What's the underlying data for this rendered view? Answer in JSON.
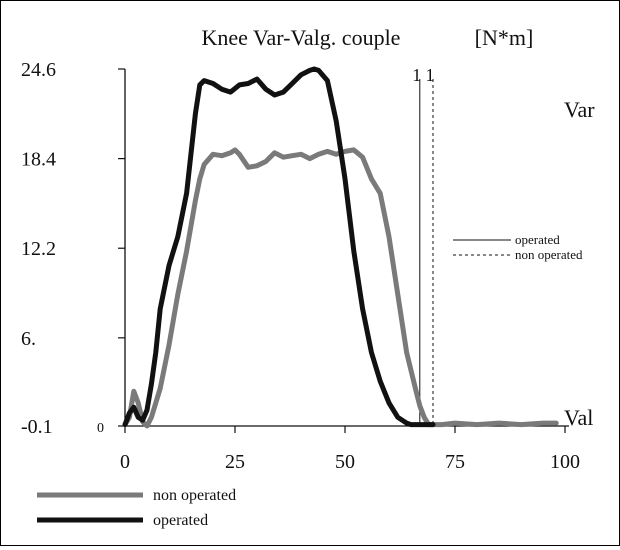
{
  "chart_data": {
    "type": "line",
    "title": "Knee Var-Valg. couple",
    "unit": "[N*m]",
    "xlabel": "",
    "ylabel": "",
    "xlim": [
      0,
      100
    ],
    "ylim": [
      -0.1,
      24.6
    ],
    "x_ticks": [
      0,
      25,
      50,
      75,
      100
    ],
    "x_tick_labels": [
      "0",
      "25",
      "50",
      "75",
      "100"
    ],
    "y_ticks": [
      -0.1,
      6,
      12.2,
      18.4,
      24.6
    ],
    "y_tick_labels": [
      "-0.1",
      "6.",
      "12.2",
      "18.4",
      "24.6"
    ],
    "zero_label": "0",
    "grid": false,
    "region_labels": {
      "top": "Var",
      "bottom": "Val"
    },
    "markers": [
      {
        "name": "operated",
        "x": 67,
        "label": "1",
        "style": "solid"
      },
      {
        "name": "non operated",
        "x": 70,
        "label": "1",
        "style": "dashed"
      }
    ],
    "marker_legend": [
      {
        "label": "operated",
        "style": "solid"
      },
      {
        "label": "non operated",
        "style": "dashed"
      }
    ],
    "series": [
      {
        "name": "non operated",
        "color": "#7a7a7a",
        "x": [
          0,
          1,
          2,
          3,
          4,
          5,
          6,
          8,
          10,
          12,
          14,
          16,
          17,
          18,
          20,
          22,
          24,
          25,
          26,
          28,
          30,
          32,
          34,
          36,
          38,
          40,
          42,
          44,
          46,
          48,
          50,
          52,
          54,
          56,
          58,
          60,
          62,
          64,
          66,
          67,
          68,
          69,
          70,
          72,
          75,
          80,
          85,
          90,
          95,
          98
        ],
        "y": [
          0,
          0.5,
          2.3,
          1.5,
          0.2,
          -0.1,
          0.5,
          2.5,
          5.5,
          9.0,
          12.0,
          15.5,
          17.0,
          18.0,
          18.7,
          18.6,
          18.8,
          19.0,
          18.7,
          17.8,
          17.9,
          18.2,
          18.8,
          18.5,
          18.6,
          18.7,
          18.4,
          18.7,
          18.9,
          18.7,
          18.9,
          19.0,
          18.5,
          17.0,
          16.0,
          13.0,
          9.0,
          5.0,
          2.5,
          1.3,
          0.5,
          0.0,
          0.0,
          0.0,
          0.1,
          0.0,
          0.1,
          0.0,
          0.1,
          0.1
        ]
      },
      {
        "name": "operated",
        "color": "#111111",
        "x": [
          0,
          1,
          2,
          3,
          4,
          5,
          6,
          7,
          8,
          10,
          12,
          14,
          16,
          17,
          18,
          20,
          22,
          24,
          26,
          28,
          30,
          32,
          34,
          36,
          38,
          40,
          42,
          43,
          44,
          46,
          48,
          50,
          52,
          54,
          56,
          58,
          60,
          62,
          64,
          65,
          66,
          67,
          68,
          70
        ],
        "y": [
          0,
          0.8,
          1.2,
          0.5,
          0.3,
          1.0,
          2.8,
          5.0,
          8.0,
          11.0,
          13.0,
          16.0,
          21.5,
          23.5,
          23.8,
          23.6,
          23.2,
          23.0,
          23.5,
          23.6,
          23.9,
          23.2,
          22.8,
          23.0,
          23.6,
          24.2,
          24.5,
          24.6,
          24.5,
          23.8,
          21.0,
          17.0,
          12.0,
          8.0,
          5.0,
          3.0,
          1.5,
          0.5,
          0.1,
          0.0,
          0.0,
          0.0,
          0.0,
          0.0
        ]
      }
    ],
    "legend_placement": "bottom-left"
  }
}
